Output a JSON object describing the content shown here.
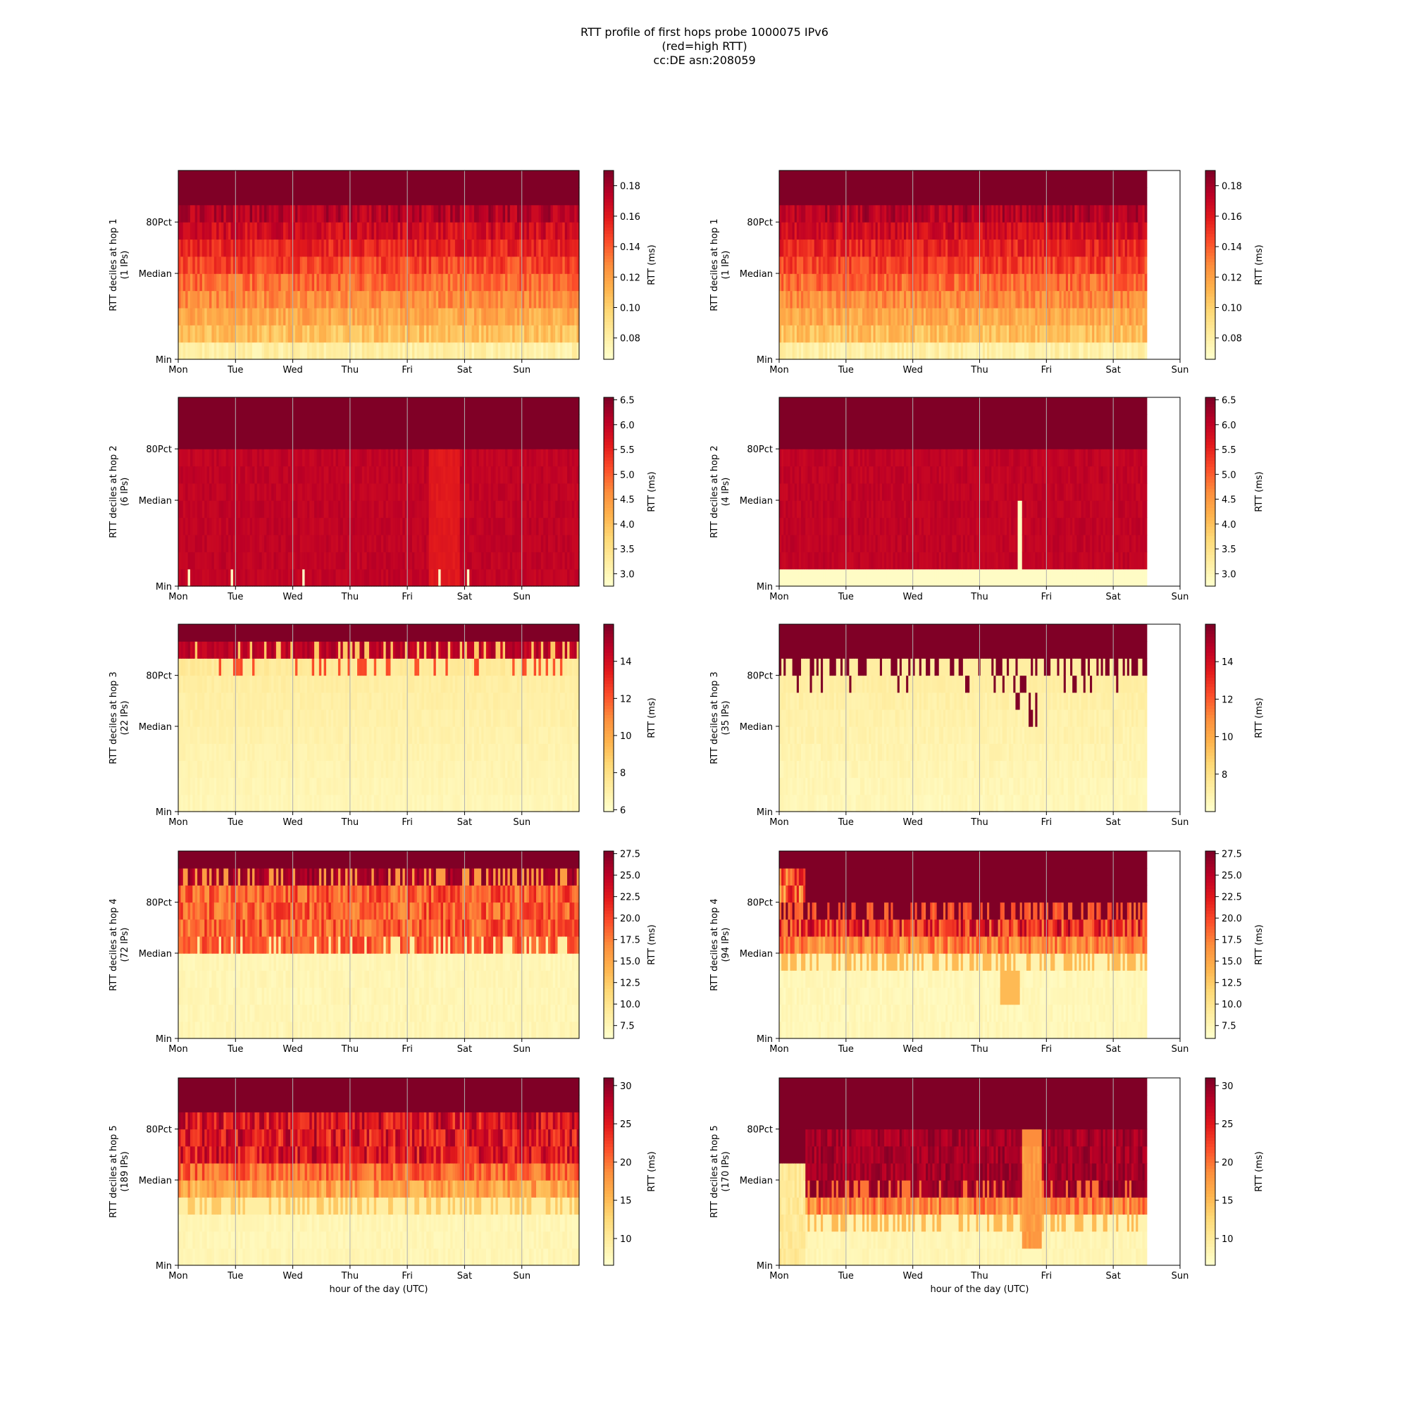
{
  "title_lines": [
    "RTT profile of first hops probe 1000075 IPv6",
    "(red=high RTT)",
    "cc:DE asn:208059"
  ],
  "colormap": [
    "#ffffcc",
    "#ffeda0",
    "#fed976",
    "#feb24c",
    "#fd8d3c",
    "#fc4e2a",
    "#e31a1c",
    "#bd0026",
    "#800026"
  ],
  "chart_data": {
    "type": "heatmap",
    "x_ticks": [
      "Mon",
      "Tue",
      "Wed",
      "Thu",
      "Fri",
      "Sat",
      "Sun"
    ],
    "x_ticks_right": [
      "Mon",
      "Tue",
      "Wed",
      "Thu",
      "Fri",
      "Sat",
      "Sun"
    ],
    "y_ticks": [
      "Min",
      "Median",
      "80Pct"
    ],
    "xlabel": "hour of the day (UTC)",
    "colorbar_label": "RTT (ms)",
    "panels": [
      {
        "hop": 1,
        "col": 0,
        "ylabel": "RTT deciles at hop 1",
        "ips": "(1 IPs)",
        "cbar_ticks": [
          "0.08",
          "0.10",
          "0.12",
          "0.14",
          "0.16",
          "0.18"
        ],
        "cbar_range": [
          0.066,
          0.19
        ],
        "pattern": "hop1",
        "data_fraction": 1.0
      },
      {
        "hop": 1,
        "col": 1,
        "ylabel": "RTT deciles at hop 1",
        "ips": "(1 IPs)",
        "cbar_ticks": [
          "0.08",
          "0.10",
          "0.12",
          "0.14",
          "0.16",
          "0.18"
        ],
        "cbar_range": [
          0.066,
          0.19
        ],
        "pattern": "hop1",
        "data_fraction": 0.917
      },
      {
        "hop": 2,
        "col": 0,
        "ylabel": "RTT deciles at hop 2",
        "ips": "(6 IPs)",
        "cbar_ticks": [
          "3.0",
          "3.5",
          "4.0",
          "4.5",
          "5.0",
          "5.5",
          "6.0",
          "6.5"
        ],
        "cbar_range": [
          2.75,
          6.55
        ],
        "pattern": "hop2a",
        "data_fraction": 1.0
      },
      {
        "hop": 2,
        "col": 1,
        "ylabel": "RTT deciles at hop 2",
        "ips": "(4 IPs)",
        "cbar_ticks": [
          "3.0",
          "3.5",
          "4.0",
          "4.5",
          "5.0",
          "5.5",
          "6.0",
          "6.5"
        ],
        "cbar_range": [
          2.75,
          6.55
        ],
        "pattern": "hop2b",
        "data_fraction": 0.917
      },
      {
        "hop": 3,
        "col": 0,
        "ylabel": "RTT deciles at hop 3",
        "ips": "(22 IPs)",
        "cbar_ticks": [
          "6",
          "8",
          "10",
          "12",
          "14"
        ],
        "cbar_range": [
          5.9,
          16.0
        ],
        "pattern": "hop3a",
        "data_fraction": 1.0
      },
      {
        "hop": 3,
        "col": 1,
        "ylabel": "RTT deciles at hop 3",
        "ips": "(35 IPs)",
        "cbar_ticks": [
          "8",
          "10",
          "12",
          "14"
        ],
        "cbar_range": [
          6.0,
          16.0
        ],
        "pattern": "hop3b",
        "data_fraction": 0.917
      },
      {
        "hop": 4,
        "col": 0,
        "ylabel": "RTT deciles at hop 4",
        "ips": "(72 IPs)",
        "cbar_ticks": [
          "7.5",
          "10.0",
          "12.5",
          "15.0",
          "17.5",
          "20.0",
          "22.5",
          "25.0",
          "27.5"
        ],
        "cbar_range": [
          6.0,
          27.8
        ],
        "pattern": "hop4a",
        "data_fraction": 1.0
      },
      {
        "hop": 4,
        "col": 1,
        "ylabel": "RTT deciles at hop 4",
        "ips": "(94 IPs)",
        "cbar_ticks": [
          "7.5",
          "10.0",
          "12.5",
          "15.0",
          "17.5",
          "20.0",
          "22.5",
          "25.0",
          "27.5"
        ],
        "cbar_range": [
          6.0,
          27.8
        ],
        "pattern": "hop4b",
        "data_fraction": 0.917
      },
      {
        "hop": 5,
        "col": 0,
        "ylabel": "RTT deciles at hop 5",
        "ips": "(189 IPs)",
        "cbar_ticks": [
          "10",
          "15",
          "20",
          "25",
          "30"
        ],
        "cbar_range": [
          6.5,
          31.0
        ],
        "pattern": "hop5a",
        "data_fraction": 1.0
      },
      {
        "hop": 5,
        "col": 1,
        "ylabel": "RTT deciles at hop 5",
        "ips": "(170 IPs)",
        "cbar_ticks": [
          "10",
          "15",
          "20",
          "25",
          "30"
        ],
        "cbar_range": [
          6.5,
          31.0
        ],
        "pattern": "hop5b",
        "data_fraction": 0.917
      }
    ]
  }
}
